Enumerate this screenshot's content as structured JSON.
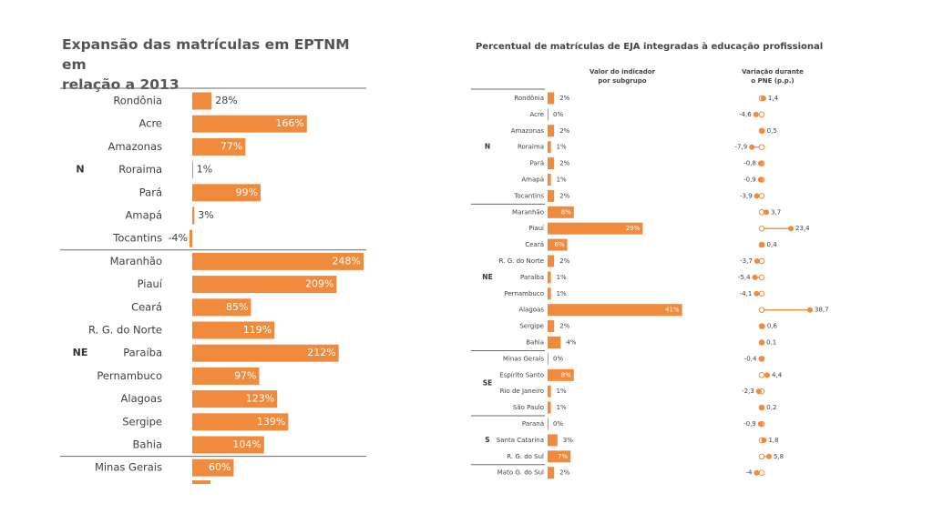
{
  "left_title": "Expansão das matrículas em EPTNM em\nrelação a 2013",
  "right_title": "Percentual de matrículas de EJA integradas à educação profissional",
  "right_col_heads": [
    "Valor do indicador\npor subgrupo",
    "Variação durante\no PNE (p.p.)"
  ],
  "colors": {
    "bar": "#F08A3C",
    "text": "#404040",
    "inside_label": "#ffffff",
    "rule": "#6b6b6b"
  },
  "chart_data": [
    {
      "type": "bar",
      "orientation": "horizontal",
      "title": "Expansão das matrículas em EPTNM em relação a 2013",
      "unit": "%",
      "groups": [
        {
          "label": "N",
          "items": [
            {
              "name": "Rondônia",
              "value": 28,
              "label": "28%"
            },
            {
              "name": "Acre",
              "value": 166,
              "label": "166%"
            },
            {
              "name": "Amazonas",
              "value": 77,
              "label": "77%"
            },
            {
              "name": "Roraima",
              "value": 1,
              "label": "1%"
            },
            {
              "name": "Pará",
              "value": 99,
              "label": "99%"
            },
            {
              "name": "Amapá",
              "value": 3,
              "label": "3%"
            },
            {
              "name": "Tocantins",
              "value": -4,
              "label": "-4%"
            }
          ]
        },
        {
          "label": "NE",
          "items": [
            {
              "name": "Maranhão",
              "value": 248,
              "label": "248%"
            },
            {
              "name": "Piauí",
              "value": 209,
              "label": "209%"
            },
            {
              "name": "Ceará",
              "value": 85,
              "label": "85%"
            },
            {
              "name": "R. G. do Norte",
              "value": 119,
              "label": "119%"
            },
            {
              "name": "Paraíba",
              "value": 212,
              "label": "212%"
            },
            {
              "name": "Pernambuco",
              "value": 97,
              "label": "97%"
            },
            {
              "name": "Alagoas",
              "value": 123,
              "label": "123%"
            },
            {
              "name": "Sergipe",
              "value": 139,
              "label": "139%"
            },
            {
              "name": "Bahia",
              "value": 104,
              "label": "104%"
            }
          ]
        },
        {
          "label": "",
          "items": [
            {
              "name": "Minas Gerais",
              "value": 60,
              "label": "60%"
            }
          ]
        }
      ]
    },
    {
      "type": "bar",
      "orientation": "horizontal",
      "title": "Percentual de matrículas de EJA integradas à educação profissional",
      "unit": "%",
      "value_header": "Valor do indicador por subgrupo",
      "change_header": "Variação durante o PNE (p.p.)",
      "groups": [
        {
          "label": "N",
          "items": [
            {
              "name": "Rondônia",
              "value": 2,
              "label": "2%",
              "change": 1.4,
              "change_label": "1,4"
            },
            {
              "name": "Acre",
              "value": 0,
              "label": "0%",
              "change": -4.6,
              "change_label": "-4,6"
            },
            {
              "name": "Amazonas",
              "value": 2,
              "label": "2%",
              "change": 0.5,
              "change_label": "0,5"
            },
            {
              "name": "Roraima",
              "value": 1,
              "label": "1%",
              "change": -7.9,
              "change_label": "-7,9"
            },
            {
              "name": "Pará",
              "value": 2,
              "label": "2%",
              "change": -0.8,
              "change_label": "-0,8"
            },
            {
              "name": "Amapá",
              "value": 1,
              "label": "1%",
              "change": -0.9,
              "change_label": "-0,9"
            },
            {
              "name": "Tocantins",
              "value": 2,
              "label": "2%",
              "change": -3.9,
              "change_label": "-3,9"
            }
          ]
        },
        {
          "label": "NE",
          "items": [
            {
              "name": "Maranhão",
              "value": 8,
              "label": "8%",
              "change": 3.7,
              "change_label": "3,7"
            },
            {
              "name": "Piauí",
              "value": 29,
              "label": "29%",
              "change": 23.4,
              "change_label": "23,4"
            },
            {
              "name": "Ceará",
              "value": 6,
              "label": "6%",
              "change": 0.4,
              "change_label": "0,4"
            },
            {
              "name": "R. G. do Norte",
              "value": 2,
              "label": "2%",
              "change": -3.7,
              "change_label": "-3,7"
            },
            {
              "name": "Paraíba",
              "value": 1,
              "label": "1%",
              "change": -5.4,
              "change_label": "-5,4"
            },
            {
              "name": "Pernambuco",
              "value": 1,
              "label": "1%",
              "change": -4.1,
              "change_label": "-4,1"
            },
            {
              "name": "Alagoas",
              "value": 41,
              "label": "41%",
              "change": 38.7,
              "change_label": "38,7"
            },
            {
              "name": "Sergipe",
              "value": 2,
              "label": "2%",
              "change": 0.6,
              "change_label": "0,6"
            },
            {
              "name": "Bahia",
              "value": 4,
              "label": "4%",
              "change": 0.1,
              "change_label": "0,1"
            }
          ]
        },
        {
          "label": "SE",
          "items": [
            {
              "name": "Minas Gerais",
              "value": 0,
              "label": "0%",
              "change": -0.4,
              "change_label": "-0,4"
            },
            {
              "name": "Espírito Santo",
              "value": 8,
              "label": "8%",
              "change": 4.4,
              "change_label": "4,4"
            },
            {
              "name": "Rio de Janeiro",
              "value": 1,
              "label": "1%",
              "change": -2.3,
              "change_label": "-2,3"
            },
            {
              "name": "São Paulo",
              "value": 1,
              "label": "1%",
              "change": 0.2,
              "change_label": "0,2"
            }
          ]
        },
        {
          "label": "S",
          "items": [
            {
              "name": "Paraná",
              "value": 0,
              "label": "0%",
              "change": -0.9,
              "change_label": "-0,9"
            },
            {
              "name": "Santa Catarina",
              "value": 3,
              "label": "3%",
              "change": 1.8,
              "change_label": "1,8"
            },
            {
              "name": "R. G. do Sul",
              "value": 7,
              "label": "7%",
              "change": 5.8,
              "change_label": "5,8"
            }
          ]
        },
        {
          "label": "",
          "items": [
            {
              "name": "Mato G. do Sul",
              "value": 2,
              "label": "2%",
              "change": -4,
              "change_label": "-4"
            }
          ]
        }
      ]
    }
  ]
}
